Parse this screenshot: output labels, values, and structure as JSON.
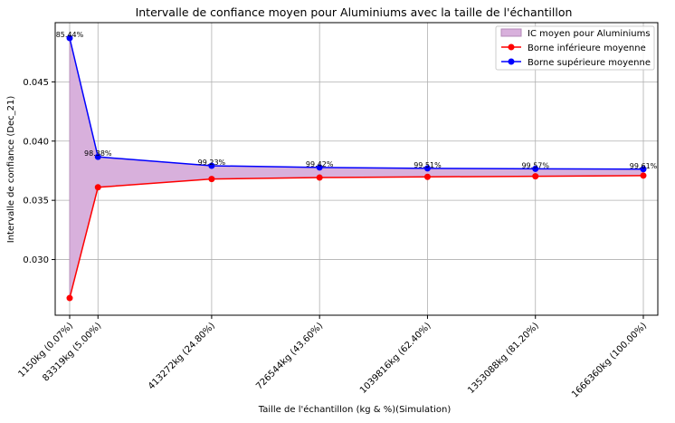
{
  "chart_data": {
    "type": "line",
    "title": "Intervalle de confiance moyen pour Aluminiums avec la taille de l'échantillon",
    "xlabel": "Taille de l'échantillon (kg & %)(Simulation)",
    "ylabel": "Intervalle de confiance (Dec_21)",
    "x": [
      1150,
      83319,
      413272,
      726544,
      1039816,
      1353088,
      1666360
    ],
    "x_tick_labels": [
      "1150kg (0.07%)",
      "83319kg (5.00%)",
      "413272kg (24.80%)",
      "726544kg (43.60%)",
      "1039816kg (62.40%)",
      "1353088kg (81.20%)",
      "1666360kg (100.00%)"
    ],
    "y_ticks": [
      0.03,
      0.035,
      0.04,
      0.045
    ],
    "y_tick_labels": [
      "0.030",
      "0.035",
      "0.040",
      "0.045"
    ],
    "ylim": [
      0.0253,
      0.05
    ],
    "grid": true,
    "legend_position": "top-right",
    "series": [
      {
        "name": "Borne inférieure moyenne",
        "color": "#ff0000",
        "values": [
          0.02675,
          0.0361,
          0.0368,
          0.03692,
          0.03698,
          0.03703,
          0.03709
        ]
      },
      {
        "name": "Borne supérieure moyenne",
        "color": "#0000ff",
        "values": [
          0.0487,
          0.03867,
          0.03792,
          0.03777,
          0.0377,
          0.03766,
          0.03763
        ]
      }
    ],
    "band": {
      "name": "IC moyen pour Aluminiums",
      "color": "#d8b0dc",
      "edge_color": "#b58ab8"
    },
    "annotations": [
      "85.44%",
      "98.38%",
      "99.23%",
      "99.42%",
      "99.51%",
      "99.57%",
      "99.61%"
    ]
  }
}
